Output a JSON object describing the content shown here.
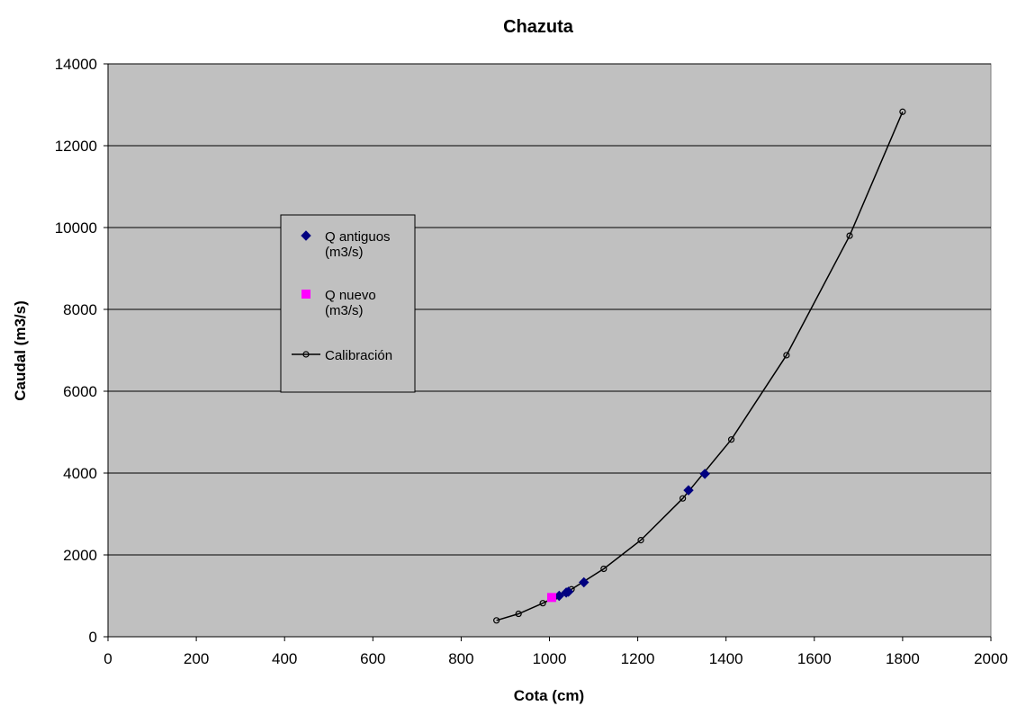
{
  "chart_data": {
    "type": "scatter",
    "title": "Chazuta",
    "xlabel": "Cota (cm)",
    "ylabel": "Caudal (m3/s)",
    "xlim": [
      0,
      2000
    ],
    "ylim": [
      0,
      14000
    ],
    "xticks": [
      0,
      200,
      400,
      600,
      800,
      1000,
      1200,
      1400,
      1600,
      1800,
      2000
    ],
    "yticks": [
      0,
      2000,
      4000,
      6000,
      8000,
      10000,
      12000,
      14000
    ],
    "grid": "horizontal",
    "legend_position": "left",
    "plot_background": "#c0c0c0",
    "series": [
      {
        "name": "Q antiguos (m3/s)",
        "legend_lines": [
          "Q antiguos",
          "(m3/s)"
        ],
        "marker": "diamond",
        "color": "#000080",
        "line": false,
        "x": [
          1022,
          1038,
          1043,
          1078,
          1315,
          1352
        ],
        "y": [
          1000,
          1080,
          1100,
          1330,
          3580,
          3980
        ]
      },
      {
        "name": "Q nuevo (m3/s)",
        "legend_lines": [
          "Q nuevo",
          "(m3/s)"
        ],
        "marker": "square",
        "color": "#ff00ff",
        "line": false,
        "x": [
          1005
        ],
        "y": [
          960
        ]
      },
      {
        "name": "Calibración",
        "legend_lines": [
          "Calibración"
        ],
        "marker": "circle",
        "color": "#000000",
        "line": true,
        "x": [
          880,
          930,
          985,
          1010,
          1050,
          1123,
          1207,
          1302,
          1412,
          1537,
          1680,
          1800
        ],
        "y": [
          400,
          560,
          820,
          950,
          1160,
          1660,
          2360,
          3380,
          4820,
          6880,
          9800,
          12830
        ]
      }
    ]
  }
}
